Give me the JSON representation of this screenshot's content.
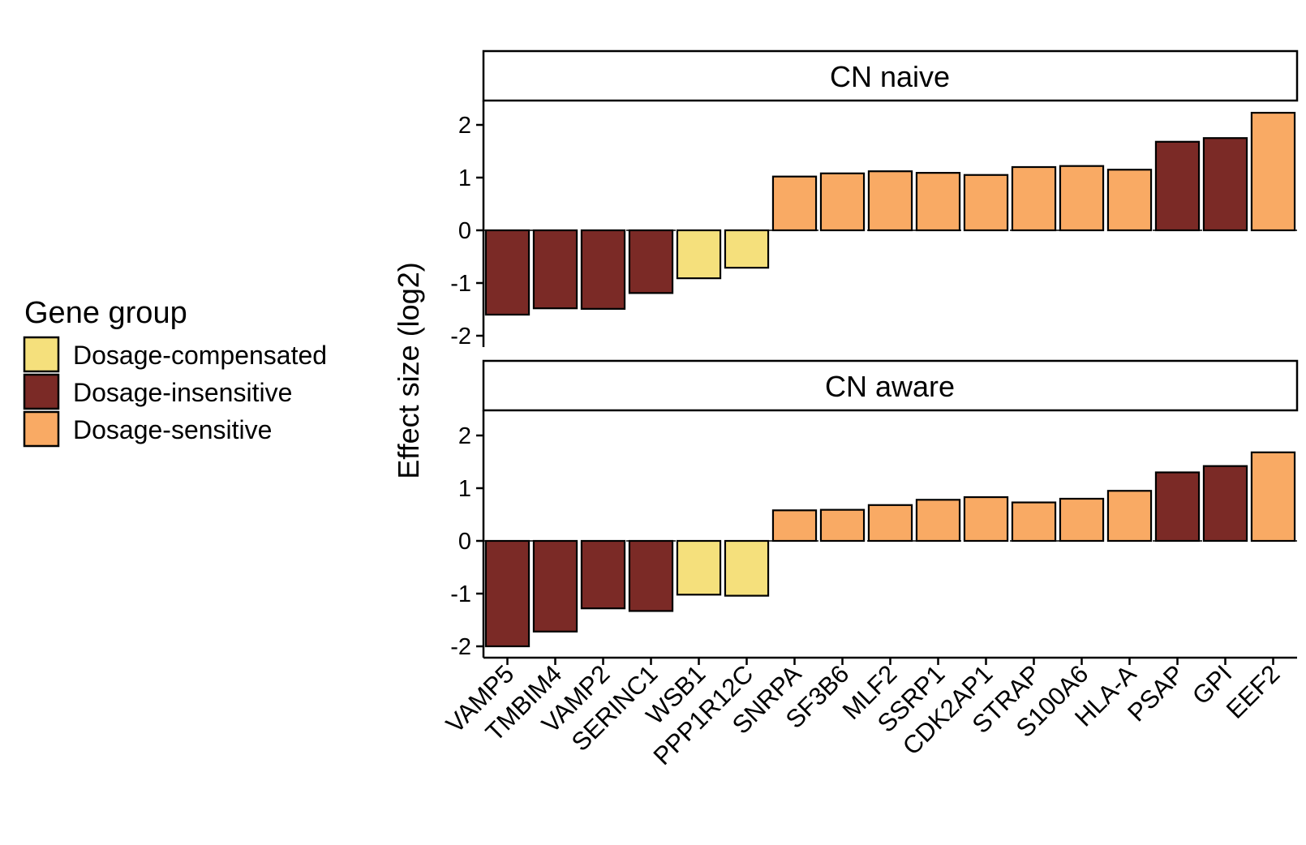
{
  "chart_data": {
    "type": "bar",
    "ylabel": "Effect size (log2)",
    "legend": {
      "title": "Gene group",
      "position": "left",
      "entries": [
        {
          "name": "Dosage-compensated",
          "color": "#F5E07C"
        },
        {
          "name": "Dosage-insensitive",
          "color": "#7B2A26"
        },
        {
          "name": "Dosage-sensitive",
          "color": "#F9AA64"
        }
      ]
    },
    "categories": [
      "VAMP5",
      "TMBIM4",
      "VAMP2",
      "SERINC1",
      "WSB1",
      "PPP1R12C",
      "SNRPA",
      "SF3B6",
      "MLF2",
      "SSRP1",
      "CDK2AP1",
      "STRAP",
      "S100A6",
      "HLA-A",
      "PSAP",
      "GPI",
      "EEF2"
    ],
    "groups": [
      "Dosage-insensitive",
      "Dosage-insensitive",
      "Dosage-insensitive",
      "Dosage-insensitive",
      "Dosage-compensated",
      "Dosage-compensated",
      "Dosage-sensitive",
      "Dosage-sensitive",
      "Dosage-sensitive",
      "Dosage-sensitive",
      "Dosage-sensitive",
      "Dosage-sensitive",
      "Dosage-sensitive",
      "Dosage-sensitive",
      "Dosage-insensitive",
      "Dosage-insensitive",
      "Dosage-sensitive"
    ],
    "ylim": [
      -2.3,
      2.4
    ],
    "yticks": [
      -2,
      -1,
      0,
      1,
      2
    ],
    "grid": false,
    "panels": [
      {
        "name": "CN naive",
        "values": [
          -1.6,
          -1.48,
          -1.49,
          -1.19,
          -0.91,
          -0.71,
          1.02,
          1.08,
          1.12,
          1.09,
          1.05,
          1.2,
          1.22,
          1.15,
          1.68,
          1.75,
          2.23
        ]
      },
      {
        "name": "CN aware",
        "values": [
          -2.0,
          -1.72,
          -1.28,
          -1.33,
          -1.02,
          -1.04,
          0.58,
          0.59,
          0.68,
          0.78,
          0.83,
          0.73,
          0.8,
          0.95,
          1.3,
          1.42,
          1.68
        ]
      }
    ]
  }
}
